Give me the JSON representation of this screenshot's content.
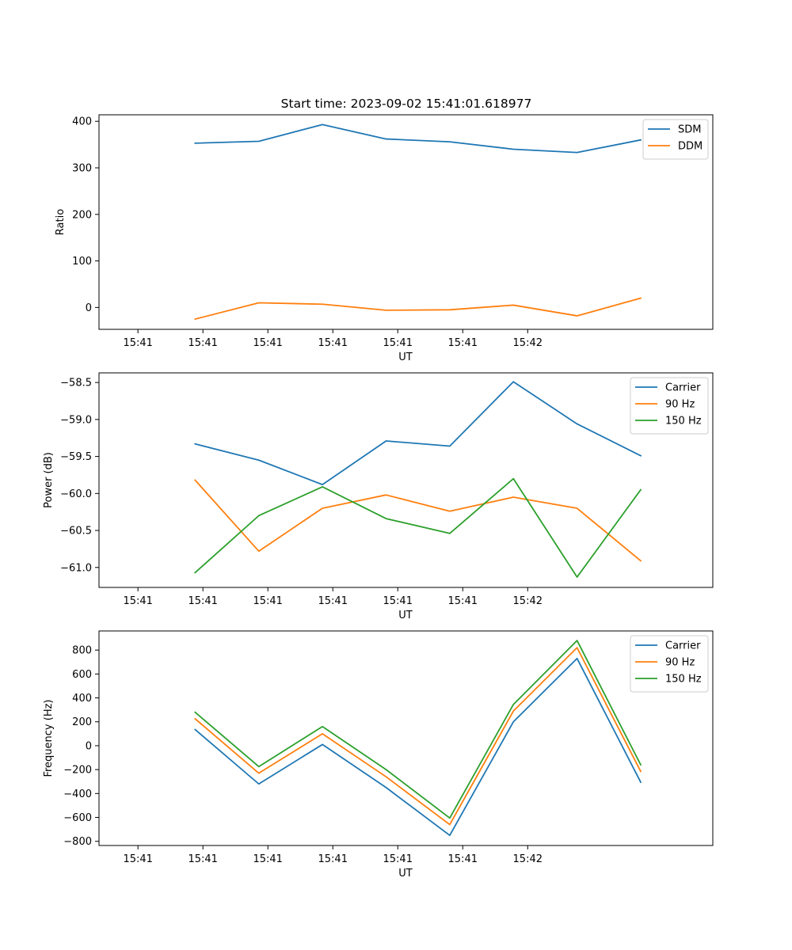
{
  "figure": {
    "title": "Start time: 2023-09-02 15:41:01.618977"
  },
  "chart_data": [
    {
      "type": "line",
      "title": "Start time: 2023-09-02 15:41:01.618977",
      "xlabel": "UT",
      "ylabel": "Ratio",
      "x_ticklabels": [
        "15:41",
        "15:41",
        "15:41",
        "15:41",
        "15:41",
        "15:41",
        "15:42"
      ],
      "y_ticks": [
        0,
        100,
        200,
        300,
        400
      ],
      "y_ticklabels": [
        "0",
        "100",
        "200",
        "300",
        "400"
      ],
      "ylim": [
        -47,
        414
      ],
      "x_range": [
        -0.6,
        8.85
      ],
      "x": [
        0.88,
        1.86,
        2.84,
        3.82,
        4.8,
        5.78,
        6.76,
        7.74
      ],
      "legend_position": "top-right",
      "series": [
        {
          "name": "SDM",
          "color": "#1f77b4",
          "values": [
            353,
            357,
            393,
            362,
            356,
            340,
            333,
            360
          ]
        },
        {
          "name": "DDM",
          "color": "#ff7f0e",
          "values": [
            -25,
            10,
            7,
            -6,
            -5,
            5,
            -18,
            20
          ]
        }
      ]
    },
    {
      "type": "line",
      "title": "",
      "xlabel": "UT",
      "ylabel": "Power (dB)",
      "x_ticklabels": [
        "15:41",
        "15:41",
        "15:41",
        "15:41",
        "15:41",
        "15:41",
        "15:42"
      ],
      "y_ticks": [
        -61.0,
        -60.5,
        -60.0,
        -59.5,
        -59.0,
        -58.5
      ],
      "y_ticklabels": [
        "−61.0",
        "−60.5",
        "−60.0",
        "−59.5",
        "−59.0",
        "−58.5"
      ],
      "ylim": [
        -61.27,
        -58.37
      ],
      "x_range": [
        -0.6,
        8.85
      ],
      "x": [
        0.88,
        1.86,
        2.84,
        3.82,
        4.8,
        5.78,
        6.76,
        7.74
      ],
      "legend_position": "top-right",
      "series": [
        {
          "name": "Carrier",
          "color": "#1f77b4",
          "values": [
            -59.33,
            -59.55,
            -59.88,
            -59.29,
            -59.36,
            -58.49,
            -59.06,
            -59.49
          ]
        },
        {
          "name": "90 Hz",
          "color": "#ff7f0e",
          "values": [
            -59.82,
            -60.78,
            -60.2,
            -60.02,
            -60.24,
            -60.05,
            -60.2,
            -60.91
          ]
        },
        {
          "name": "150 Hz",
          "color": "#2ca02c",
          "values": [
            -61.07,
            -60.3,
            -59.91,
            -60.34,
            -60.54,
            -59.8,
            -61.13,
            -59.95
          ]
        }
      ]
    },
    {
      "type": "line",
      "title": "",
      "xlabel": "UT",
      "ylabel": "Frequency (Hz)",
      "x_ticklabels": [
        "15:41",
        "15:41",
        "15:41",
        "15:41",
        "15:41",
        "15:41",
        "15:42"
      ],
      "y_ticks": [
        -800,
        -600,
        -400,
        -200,
        0,
        200,
        400,
        600,
        800
      ],
      "y_ticklabels": [
        "−800",
        "−600",
        "−400",
        "−200",
        "0",
        "200",
        "400",
        "600",
        "800"
      ],
      "ylim": [
        -835,
        960
      ],
      "x_range": [
        -0.6,
        8.85
      ],
      "x": [
        0.88,
        1.86,
        2.84,
        3.82,
        4.8,
        5.78,
        6.76,
        7.74
      ],
      "legend_position": "top-right",
      "series": [
        {
          "name": "Carrier",
          "color": "#1f77b4",
          "values": [
            135,
            -320,
            10,
            -350,
            -750,
            200,
            730,
            -305
          ]
        },
        {
          "name": "90 Hz",
          "color": "#ff7f0e",
          "values": [
            225,
            -230,
            100,
            -260,
            -660,
            290,
            820,
            -215
          ]
        },
        {
          "name": "150 Hz",
          "color": "#2ca02c",
          "values": [
            280,
            -175,
            160,
            -200,
            -605,
            345,
            880,
            -160
          ]
        }
      ]
    }
  ]
}
